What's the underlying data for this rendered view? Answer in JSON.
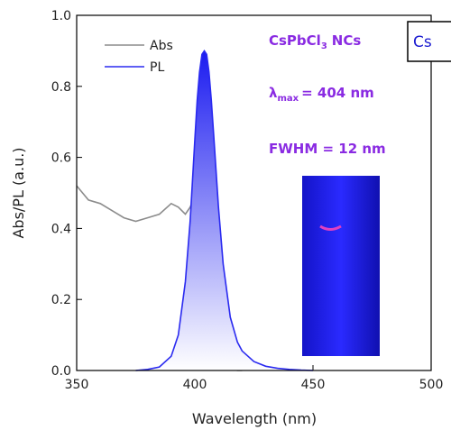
{
  "chart_data": {
    "type": "line",
    "x": [
      350,
      355,
      360,
      365,
      370,
      375,
      380,
      385,
      390,
      393,
      396,
      398,
      400,
      401,
      402,
      403,
      404,
      405,
      406,
      407,
      408,
      410,
      412,
      415,
      418,
      420,
      425,
      430,
      435,
      440,
      445,
      450
    ],
    "series": [
      {
        "name": "Abs",
        "color": "#8c8c8c",
        "values": [
          0.52,
          0.48,
          0.47,
          0.45,
          0.43,
          0.42,
          0.43,
          0.44,
          0.47,
          0.46,
          0.44,
          0.46,
          0.49,
          0.49,
          0.48,
          0.44,
          0.38,
          0.3,
          0.22,
          0.16,
          0.11,
          0.05,
          0.02,
          0.005,
          0,
          0,
          null,
          null,
          null,
          null,
          null,
          null
        ]
      },
      {
        "name": "PL",
        "color": "#2a2af0",
        "fill": true,
        "values": [
          null,
          null,
          null,
          null,
          null,
          0,
          0.003,
          0.01,
          0.04,
          0.1,
          0.25,
          0.42,
          0.65,
          0.76,
          0.84,
          0.89,
          0.9,
          0.89,
          0.84,
          0.76,
          0.66,
          0.46,
          0.3,
          0.15,
          0.08,
          0.055,
          0.025,
          0.012,
          0.006,
          0.003,
          0.001,
          0
        ]
      }
    ],
    "xlabel": "Wavelength (nm)",
    "ylabel": "Abs/PL (a.u.)",
    "xlim": [
      350,
      500
    ],
    "ylim": [
      0,
      1
    ],
    "xticks": [
      350,
      400,
      450,
      500
    ],
    "yticks": [
      {
        "value": 0,
        "label": "0.0"
      },
      {
        "value": 0.2,
        "label": "0.2"
      },
      {
        "value": 0.4,
        "label": "0.4"
      },
      {
        "value": 0.6,
        "label": "0.6"
      },
      {
        "value": 0.8,
        "label": "0.8"
      },
      {
        "value": 1,
        "label": "1.0"
      }
    ],
    "legend": "upper left",
    "annotations": [
      "CsPbCl",
      "3",
      "NCs",
      "λ",
      "max",
      "= 404 nm",
      "FWHM = 12 nm",
      "Cs"
    ]
  }
}
